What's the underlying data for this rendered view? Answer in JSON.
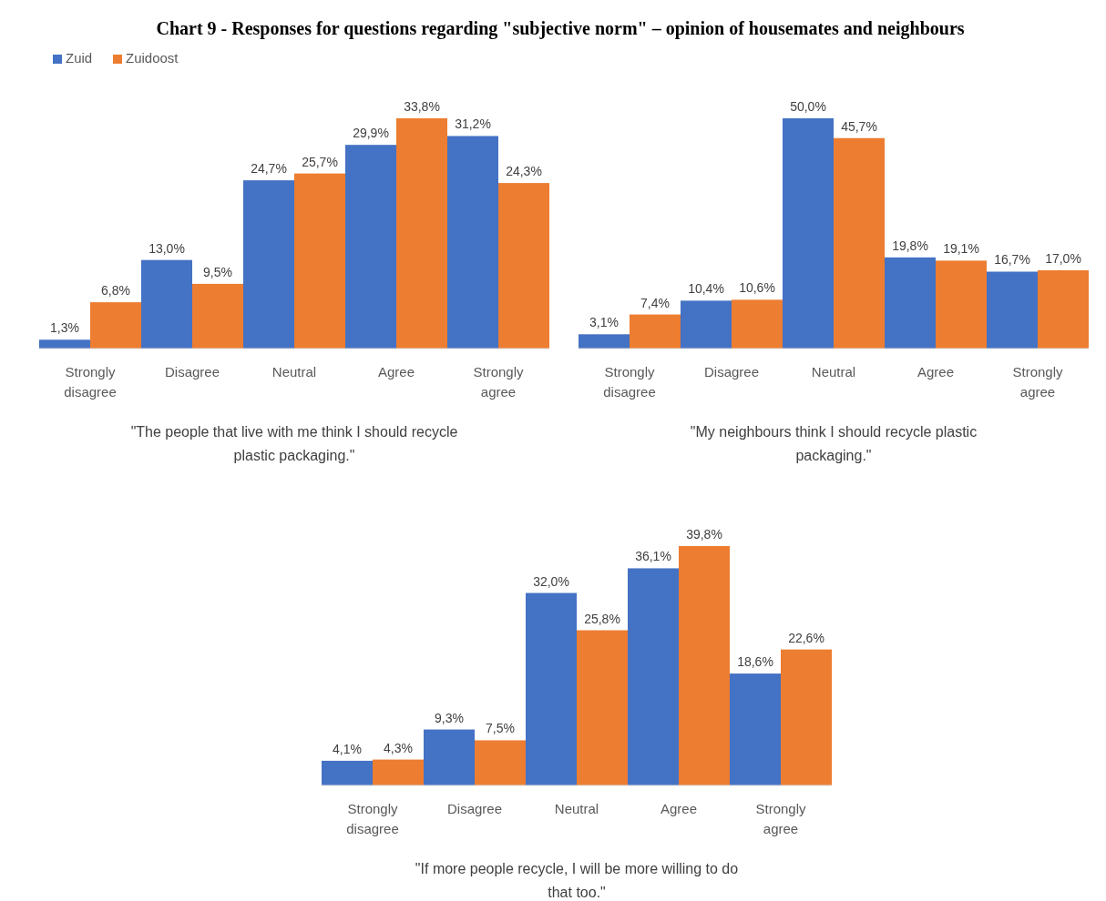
{
  "chart_data": [
    {
      "type": "bar",
      "title": "Chart 9 - Responses for questions regarding \"subjective norm\" – opinion of housemates and neighbours",
      "legend": "top left",
      "xlabel": "\"The people that live with me think I should recycle plastic packaging.\"",
      "categories": [
        "Strongly disagree",
        "Disagree",
        "Neutral",
        "Agree",
        "Strongly agree"
      ],
      "series": [
        {
          "name": "Zuid",
          "color": "#4472c4",
          "values": [
            1.3,
            13.0,
            24.7,
            29.9,
            31.2
          ],
          "value_labels": [
            "1,3%",
            "13,0%",
            "24,7%",
            "29,9%",
            "31,2%"
          ]
        },
        {
          "name": "Zuidoost",
          "color": "#ed7d31",
          "values": [
            6.8,
            9.5,
            25.7,
            33.8,
            24.3
          ],
          "value_labels": [
            "6,8%",
            "9,5%",
            "25,7%",
            "33,8%",
            "24,3%"
          ]
        }
      ]
    },
    {
      "type": "bar",
      "xlabel": "\"My neighbours think I should recycle plastic packaging.\"",
      "categories": [
        "Strongly disagree",
        "Disagree",
        "Neutral",
        "Agree",
        "Strongly agree"
      ],
      "series": [
        {
          "color": "#4472c4",
          "values": [
            3.1,
            10.4,
            50.0,
            19.8,
            16.7
          ],
          "value_labels": [
            "3,1%",
            "10,4%",
            "50,0%",
            "19,8%",
            "16,7%"
          ]
        },
        {
          "color": "#ed7d31",
          "values": [
            7.4,
            10.6,
            45.7,
            19.1,
            17.0
          ],
          "value_labels": [
            "7,4%",
            "10,6%",
            "45,7%",
            "19,1%",
            "17,0%"
          ]
        }
      ]
    },
    {
      "type": "bar",
      "xlabel": "\"If more people recycle, I will be more willing to do that too.\"",
      "categories": [
        "Strongly disagree",
        "Disagree",
        "Neutral",
        "Agree",
        "Strongly agree"
      ],
      "series": [
        {
          "color": "#4472c4",
          "values": [
            4.1,
            9.3,
            32.0,
            36.1,
            18.6
          ],
          "value_labels": [
            "4,1%",
            "9,3%",
            "32,0%",
            "36,1%",
            "18,6%"
          ]
        },
        {
          "color": "#ed7d31",
          "values": [
            4.3,
            7.5,
            25.8,
            39.8,
            22.6
          ],
          "value_labels": [
            "4,3%",
            "7,5%",
            "25,8%",
            "39,8%",
            "22,6%"
          ]
        }
      ]
    }
  ]
}
